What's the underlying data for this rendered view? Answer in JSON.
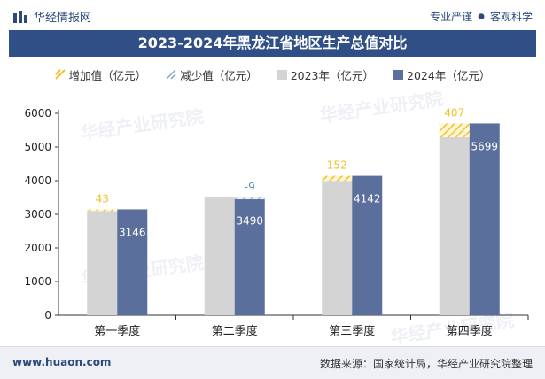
{
  "header": {
    "brand": "华经情报网",
    "tag1": "专业严谨",
    "tag2": "客观科学"
  },
  "title": "2023-2024年黑龙江省地区生产总值对比",
  "legend": {
    "increase": "增加值（亿元）",
    "decrease": "减少值（亿元）",
    "y2023": "2023年（亿元）",
    "y2024": "2024年（亿元）"
  },
  "colors": {
    "header_bar": "#2f4f86",
    "bar_2023": "#d4d4d4",
    "bar_2024": "#5a6f9b",
    "increase": "#f2c029",
    "decrease_label": "#5a8fb0"
  },
  "chart_data": {
    "type": "bar",
    "categories": [
      "第一季度",
      "第二季度",
      "第三季度",
      "第四季度"
    ],
    "series": [
      {
        "name": "2023年（亿元）",
        "values": [
          3103,
          3499,
          3990,
          5292
        ]
      },
      {
        "name": "2024年（亿元）",
        "values": [
          3146,
          3490,
          4142,
          5699
        ]
      }
    ],
    "change": [
      43,
      -9,
      152,
      407
    ],
    "change_series": [
      {
        "name": "增加值（亿元）"
      },
      {
        "name": "减少值（亿元）"
      }
    ],
    "ylim": [
      0,
      6000
    ],
    "yticks": [
      0,
      1000,
      2000,
      3000,
      4000,
      5000,
      6000
    ],
    "grid": false,
    "legend_position": "top"
  },
  "watermark": {
    "cn": "华经产业研究院",
    "en": "www.huaon.com"
  },
  "footer": {
    "site": "www.huaon.com",
    "source": "数据来源：国家统计局，华经产业研究院整理"
  }
}
